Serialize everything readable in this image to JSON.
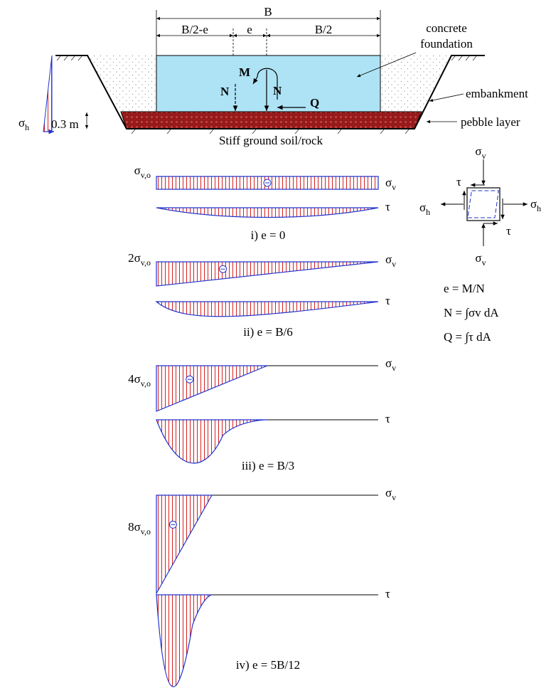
{
  "foundation": {
    "dim_B": "B",
    "dim_B2_minus_e": "B/2-e",
    "dim_e": "e",
    "dim_B2": "B/2",
    "label_concrete": "concrete",
    "label_foundation": "foundation",
    "label_embankment": "embankment",
    "label_pebble": "pebble layer",
    "label_ground": "Stiff ground soil/rock",
    "label_thickness": "0.3 m",
    "force_M": "M",
    "force_N_left": "N",
    "force_N_right": "N",
    "force_Q": "Q",
    "sigma_h": "σ",
    "sigma_h_sub": "h",
    "colors": {
      "concrete": "#aee3f5",
      "pebble": "#b21f1f",
      "hatch": "#d62020",
      "outline": "#2233cc"
    }
  },
  "element": {
    "sv_top": "σ",
    "sv_top_sub": "v",
    "sv_bottom": "σ",
    "sv_bottom_sub": "v",
    "sh_left": "σ",
    "sh_left_sub": "h",
    "sh_right": "σ",
    "sh_right_sub": "h",
    "tau_top": "τ",
    "tau_bottom": "τ"
  },
  "formulas": {
    "f1": "e = M/N",
    "f2": "N = ∫σv dA",
    "f3": "Q = ∫τ dA"
  },
  "cases": [
    {
      "label_prefix": "",
      "sigma": "σ",
      "sigma_sub": "v,o",
      "sv_label": "σ",
      "sv_sub": "v",
      "tau_label": "τ",
      "caption": "i) e = 0",
      "stress_ratio_left": 1,
      "stress_ratio_right": 1,
      "zero_point": 1.0
    },
    {
      "label_prefix": "2",
      "sigma": "σ",
      "sigma_sub": "v,o",
      "sv_label": "σ",
      "sv_sub": "v",
      "tau_label": "τ",
      "caption": "ii) e = B/6",
      "stress_ratio_left": 2,
      "stress_ratio_right": 0,
      "zero_point": 1.0
    },
    {
      "label_prefix": "4",
      "sigma": "σ",
      "sigma_sub": "v,o",
      "sv_label": "σ",
      "sv_sub": "v",
      "tau_label": "τ",
      "caption": "iii) e = B/3",
      "stress_ratio_left": 4,
      "stress_ratio_right": 0,
      "zero_point": 0.5
    },
    {
      "label_prefix": "8",
      "sigma": "σ",
      "sigma_sub": "v,o",
      "sv_label": "σ",
      "sv_sub": "v",
      "tau_label": "τ",
      "caption": "iv) e = 5B/12",
      "stress_ratio_left": 8,
      "stress_ratio_right": 0,
      "zero_point": 0.25
    }
  ]
}
